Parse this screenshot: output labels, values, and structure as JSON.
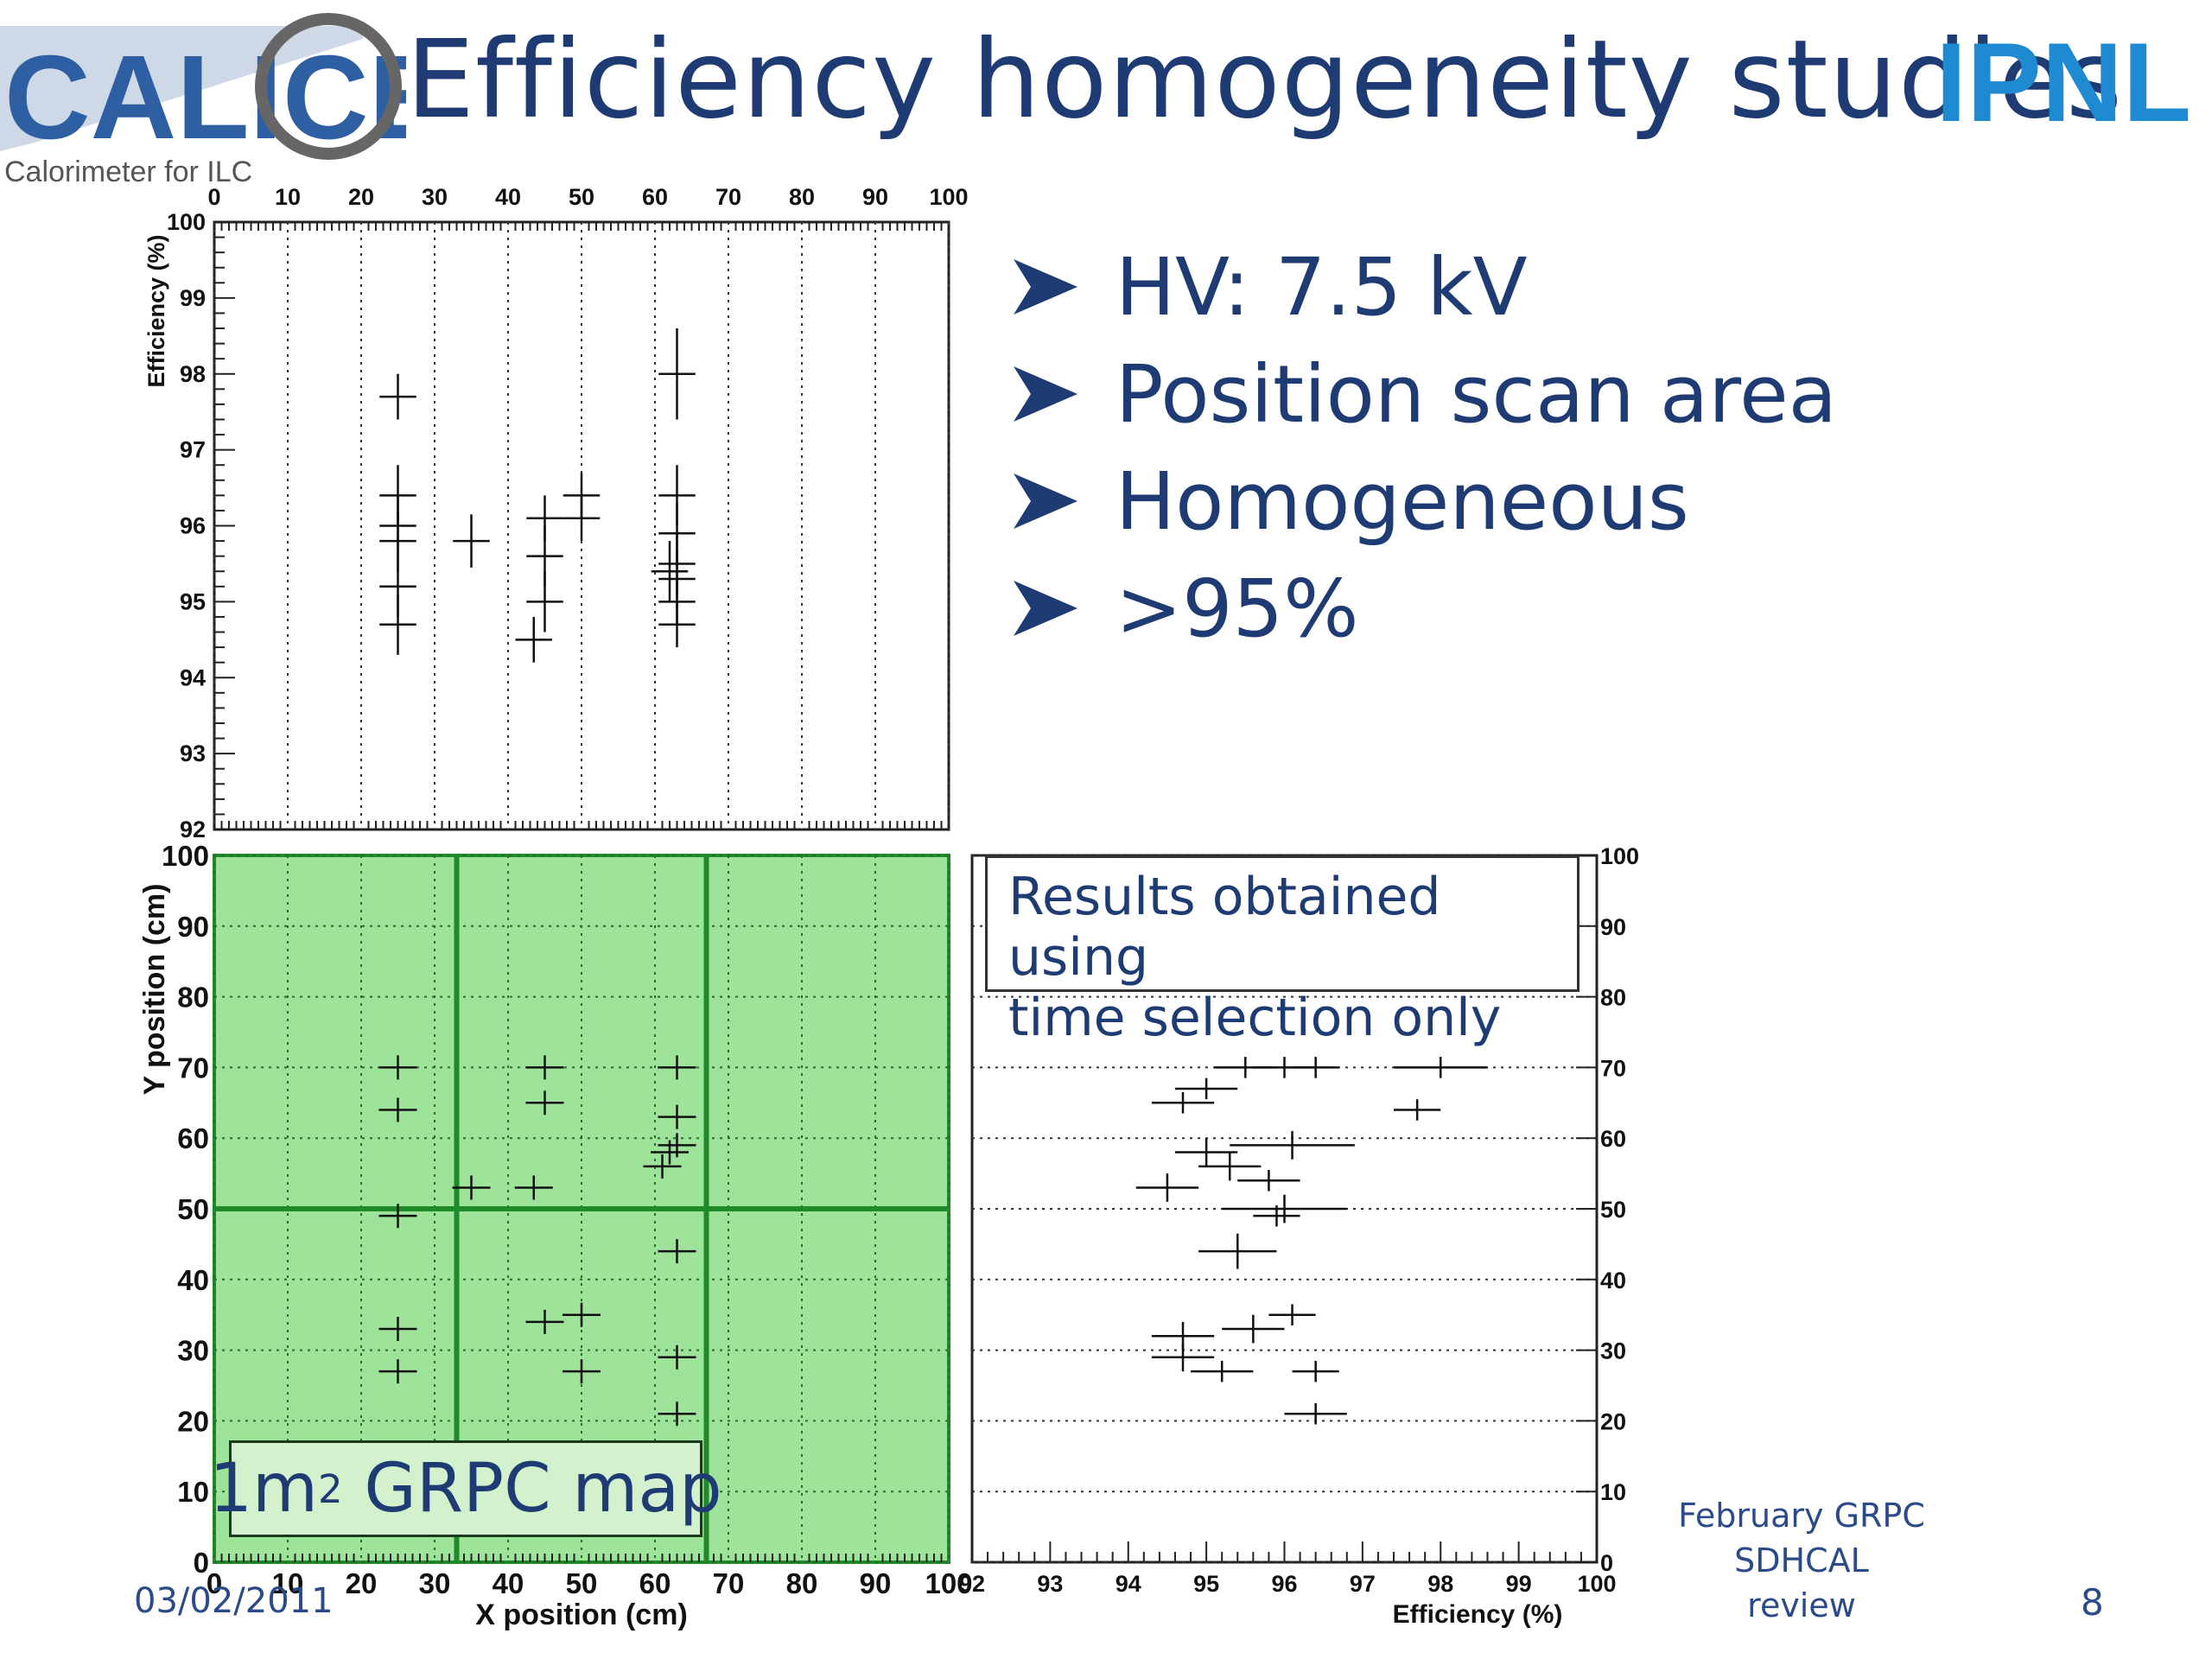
{
  "slide": {
    "title": "Efficiency homogeneity studies",
    "calice_logo_text": "CALICE",
    "calice_tagline": "Calorimeter for ILC",
    "ipnl_logo_text": "IPNL",
    "bullets": [
      "HV: 7.5 kV",
      "Position scan area",
      "Homogeneous",
      ">95%"
    ],
    "results_note": [
      "Results obtained using",
      "time selection only"
    ],
    "map_label_main": "1m",
    "map_label_sup": "2",
    "map_label_rest": " GRPC map",
    "date": "03/02/2011",
    "review_line1": "February GRPC",
    "review_line2": "SDHCAL review",
    "page_number": "8",
    "colors": {
      "title": "#1f3b73",
      "map_fill": "#9ee39a",
      "map_lines": "#1e8a2a",
      "ipnl_blue": "#1e8ad2"
    }
  },
  "chart_data": [
    {
      "type": "scatter",
      "name": "efficiency_vs_x",
      "xlabel": "",
      "ylabel": "Efficiency (%)",
      "xlim": [
        0,
        100
      ],
      "ylim": [
        92,
        100
      ],
      "x_ticks": [
        "0",
        "10",
        "20",
        "30",
        "40",
        "50",
        "60",
        "70",
        "80",
        "90",
        "100"
      ],
      "y_ticks": [
        "92",
        "93",
        "94",
        "95",
        "96",
        "97",
        "98",
        "99",
        "100"
      ],
      "grid": "x",
      "points": [
        {
          "x": 25,
          "y": 97.7,
          "ex": 2.5,
          "ey": 0.3
        },
        {
          "x": 25,
          "y": 96.4,
          "ex": 2.5,
          "ey": 0.4
        },
        {
          "x": 25,
          "y": 96.0,
          "ex": 2.5,
          "ey": 0.4
        },
        {
          "x": 25,
          "y": 95.8,
          "ex": 2.5,
          "ey": 0.4
        },
        {
          "x": 25,
          "y": 95.2,
          "ex": 2.5,
          "ey": 0.4
        },
        {
          "x": 25,
          "y": 94.7,
          "ex": 2.5,
          "ey": 0.4
        },
        {
          "x": 35,
          "y": 95.8,
          "ex": 2.5,
          "ey": 0.35
        },
        {
          "x": 45,
          "y": 96.1,
          "ex": 2.5,
          "ey": 0.3
        },
        {
          "x": 45,
          "y": 95.6,
          "ex": 2.5,
          "ey": 0.4
        },
        {
          "x": 45,
          "y": 95.0,
          "ex": 2.5,
          "ey": 0.4
        },
        {
          "x": 43.5,
          "y": 94.5,
          "ex": 2.5,
          "ey": 0.3
        },
        {
          "x": 50,
          "y": 96.4,
          "ex": 2.5,
          "ey": 0.3
        },
        {
          "x": 50,
          "y": 96.1,
          "ex": 2.5,
          "ey": 0.3
        },
        {
          "x": 63,
          "y": 98.0,
          "ex": 2.5,
          "ey": 0.6
        },
        {
          "x": 63,
          "y": 96.4,
          "ex": 2.5,
          "ey": 0.4
        },
        {
          "x": 63,
          "y": 95.9,
          "ex": 2.5,
          "ey": 0.4
        },
        {
          "x": 63,
          "y": 95.5,
          "ex": 2.5,
          "ey": 0.4
        },
        {
          "x": 62,
          "y": 95.4,
          "ex": 2.5,
          "ey": 0.4
        },
        {
          "x": 63,
          "y": 95.3,
          "ex": 2.5,
          "ey": 0.4
        },
        {
          "x": 63,
          "y": 95.0,
          "ex": 2.5,
          "ey": 0.3
        },
        {
          "x": 63,
          "y": 94.7,
          "ex": 2.5,
          "ey": 0.3
        }
      ]
    },
    {
      "type": "scatter",
      "name": "grpc_map",
      "xlabel": "X position (cm)",
      "ylabel": "Y position (cm)",
      "xlim": [
        0,
        100
      ],
      "ylim": [
        0,
        100
      ],
      "x_ticks": [
        "0",
        "10",
        "20",
        "30",
        "40",
        "50",
        "60",
        "70",
        "80",
        "90",
        "100"
      ],
      "y_ticks": [
        "0",
        "10",
        "20",
        "30",
        "40",
        "50",
        "60",
        "70",
        "80",
        "90",
        "100"
      ],
      "grid": "both",
      "pad_boundaries_x": [
        33,
        67
      ],
      "pad_boundaries_y": [
        50
      ],
      "points": [
        {
          "x": 25,
          "y": 70
        },
        {
          "x": 25,
          "y": 64
        },
        {
          "x": 25,
          "y": 49
        },
        {
          "x": 25,
          "y": 33
        },
        {
          "x": 25,
          "y": 27
        },
        {
          "x": 35,
          "y": 53
        },
        {
          "x": 43.5,
          "y": 53
        },
        {
          "x": 45,
          "y": 70
        },
        {
          "x": 45,
          "y": 65
        },
        {
          "x": 45,
          "y": 34
        },
        {
          "x": 50,
          "y": 35
        },
        {
          "x": 50,
          "y": 27
        },
        {
          "x": 63,
          "y": 70
        },
        {
          "x": 63,
          "y": 63
        },
        {
          "x": 63,
          "y": 59
        },
        {
          "x": 62,
          "y": 58
        },
        {
          "x": 61,
          "y": 56
        },
        {
          "x": 63,
          "y": 44
        },
        {
          "x": 63,
          "y": 29
        },
        {
          "x": 63,
          "y": 21
        }
      ]
    },
    {
      "type": "scatter",
      "name": "efficiency_vs_y",
      "xlabel": "Efficiency (%)",
      "ylabel": "",
      "xlim": [
        92,
        100
      ],
      "ylim": [
        0,
        100
      ],
      "x_ticks": [
        "92",
        "93",
        "94",
        "95",
        "96",
        "97",
        "98",
        "99",
        "100"
      ],
      "y_ticks": [
        "0",
        "10",
        "20",
        "30",
        "40",
        "50",
        "60",
        "70",
        "80",
        "90",
        "100"
      ],
      "grid": "y",
      "points": [
        {
          "x": 95.5,
          "y": 70,
          "ex": 0.4,
          "ey": 1.5
        },
        {
          "x": 96.0,
          "y": 70,
          "ex": 0.4,
          "ey": 1.5
        },
        {
          "x": 96.4,
          "y": 70,
          "ex": 0.3,
          "ey": 1.5
        },
        {
          "x": 98.0,
          "y": 70,
          "ex": 0.6,
          "ey": 1.5
        },
        {
          "x": 95.0,
          "y": 67,
          "ex": 0.4,
          "ey": 1.5
        },
        {
          "x": 94.7,
          "y": 65,
          "ex": 0.4,
          "ey": 1.5
        },
        {
          "x": 97.7,
          "y": 64,
          "ex": 0.3,
          "ey": 1.5
        },
        {
          "x": 96.1,
          "y": 59,
          "ex": 0.8,
          "ey": 2
        },
        {
          "x": 95.0,
          "y": 58,
          "ex": 0.4,
          "ey": 2
        },
        {
          "x": 95.3,
          "y": 56,
          "ex": 0.4,
          "ey": 2
        },
        {
          "x": 95.8,
          "y": 54,
          "ex": 0.4,
          "ey": 1.5
        },
        {
          "x": 94.5,
          "y": 53,
          "ex": 0.4,
          "ey": 2
        },
        {
          "x": 96.0,
          "y": 50,
          "ex": 0.8,
          "ey": 2
        },
        {
          "x": 95.9,
          "y": 49,
          "ex": 0.3,
          "ey": 1.5
        },
        {
          "x": 95.4,
          "y": 44,
          "ex": 0.5,
          "ey": 2.5
        },
        {
          "x": 96.1,
          "y": 35,
          "ex": 0.3,
          "ey": 1.5
        },
        {
          "x": 95.6,
          "y": 33,
          "ex": 0.4,
          "ey": 2
        },
        {
          "x": 94.7,
          "y": 32,
          "ex": 0.4,
          "ey": 2
        },
        {
          "x": 94.7,
          "y": 29,
          "ex": 0.4,
          "ey": 2
        },
        {
          "x": 95.2,
          "y": 27,
          "ex": 0.4,
          "ey": 1.5
        },
        {
          "x": 96.4,
          "y": 27,
          "ex": 0.3,
          "ey": 1.5
        },
        {
          "x": 96.4,
          "y": 21,
          "ex": 0.4,
          "ey": 1.5
        }
      ]
    }
  ]
}
